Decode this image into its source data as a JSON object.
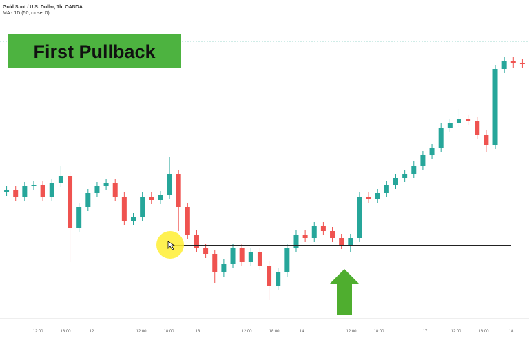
{
  "header": {
    "symbol": "Gold Spot / U.S. Dollar, 1h, OANDA",
    "indicator": "MA - 1D (50, close, 0)"
  },
  "banner": "First Pullback",
  "chart_data": {
    "type": "candlestick",
    "up_color": "#26a69a",
    "down_color": "#ef5350",
    "ylim": [
      0,
      460
    ],
    "x_labels": [
      "12:00",
      "18:00",
      "12",
      "12:00",
      "18:00",
      "13",
      "12:00",
      "18:00",
      "14",
      "12:00",
      "18:00",
      "17",
      "12:00",
      "18:00",
      "18"
    ],
    "open": [
      182,
      185,
      175,
      190,
      192,
      175,
      195,
      205,
      130,
      160,
      180,
      190,
      195,
      175,
      140,
      145,
      175,
      170,
      177,
      208,
      160,
      120,
      100,
      92,
      65,
      78,
      100,
      80,
      95,
      75,
      45,
      65,
      100,
      120,
      115,
      132,
      125,
      115,
      105,
      115,
      175,
      172,
      180,
      192,
      202,
      208,
      220,
      235,
      245,
      275,
      282,
      288,
      285,
      265,
      250,
      360,
      372,
      368
    ],
    "high": [
      191,
      191,
      196,
      198,
      198,
      201,
      220,
      211,
      166,
      186,
      196,
      201,
      201,
      181,
      151,
      181,
      181,
      183,
      232,
      214,
      166,
      126,
      106,
      98,
      84,
      106,
      106,
      101,
      101,
      81,
      71,
      106,
      126,
      126,
      138,
      138,
      131,
      121,
      121,
      181,
      181,
      186,
      198,
      208,
      214,
      226,
      241,
      251,
      281,
      288,
      302,
      294,
      291,
      271,
      366,
      378,
      378,
      374
    ],
    "low": [
      176,
      169,
      169,
      184,
      169,
      169,
      189,
      80,
      124,
      154,
      174,
      184,
      169,
      134,
      134,
      139,
      164,
      164,
      171,
      125,
      114,
      94,
      86,
      50,
      59,
      72,
      74,
      74,
      69,
      25,
      39,
      59,
      94,
      109,
      109,
      119,
      109,
      99,
      95,
      109,
      166,
      166,
      174,
      186,
      196,
      202,
      214,
      229,
      239,
      269,
      276,
      279,
      259,
      240,
      244,
      354,
      362,
      361
    ],
    "close": [
      185,
      175,
      190,
      192,
      175,
      195,
      205,
      130,
      160,
      180,
      190,
      195,
      175,
      140,
      145,
      175,
      170,
      177,
      208,
      160,
      120,
      100,
      92,
      65,
      78,
      100,
      80,
      95,
      75,
      45,
      65,
      100,
      120,
      115,
      132,
      125,
      115,
      105,
      115,
      175,
      172,
      180,
      192,
      202,
      208,
      220,
      235,
      245,
      275,
      282,
      288,
      285,
      265,
      250,
      360,
      372,
      368,
      367
    ]
  }
}
